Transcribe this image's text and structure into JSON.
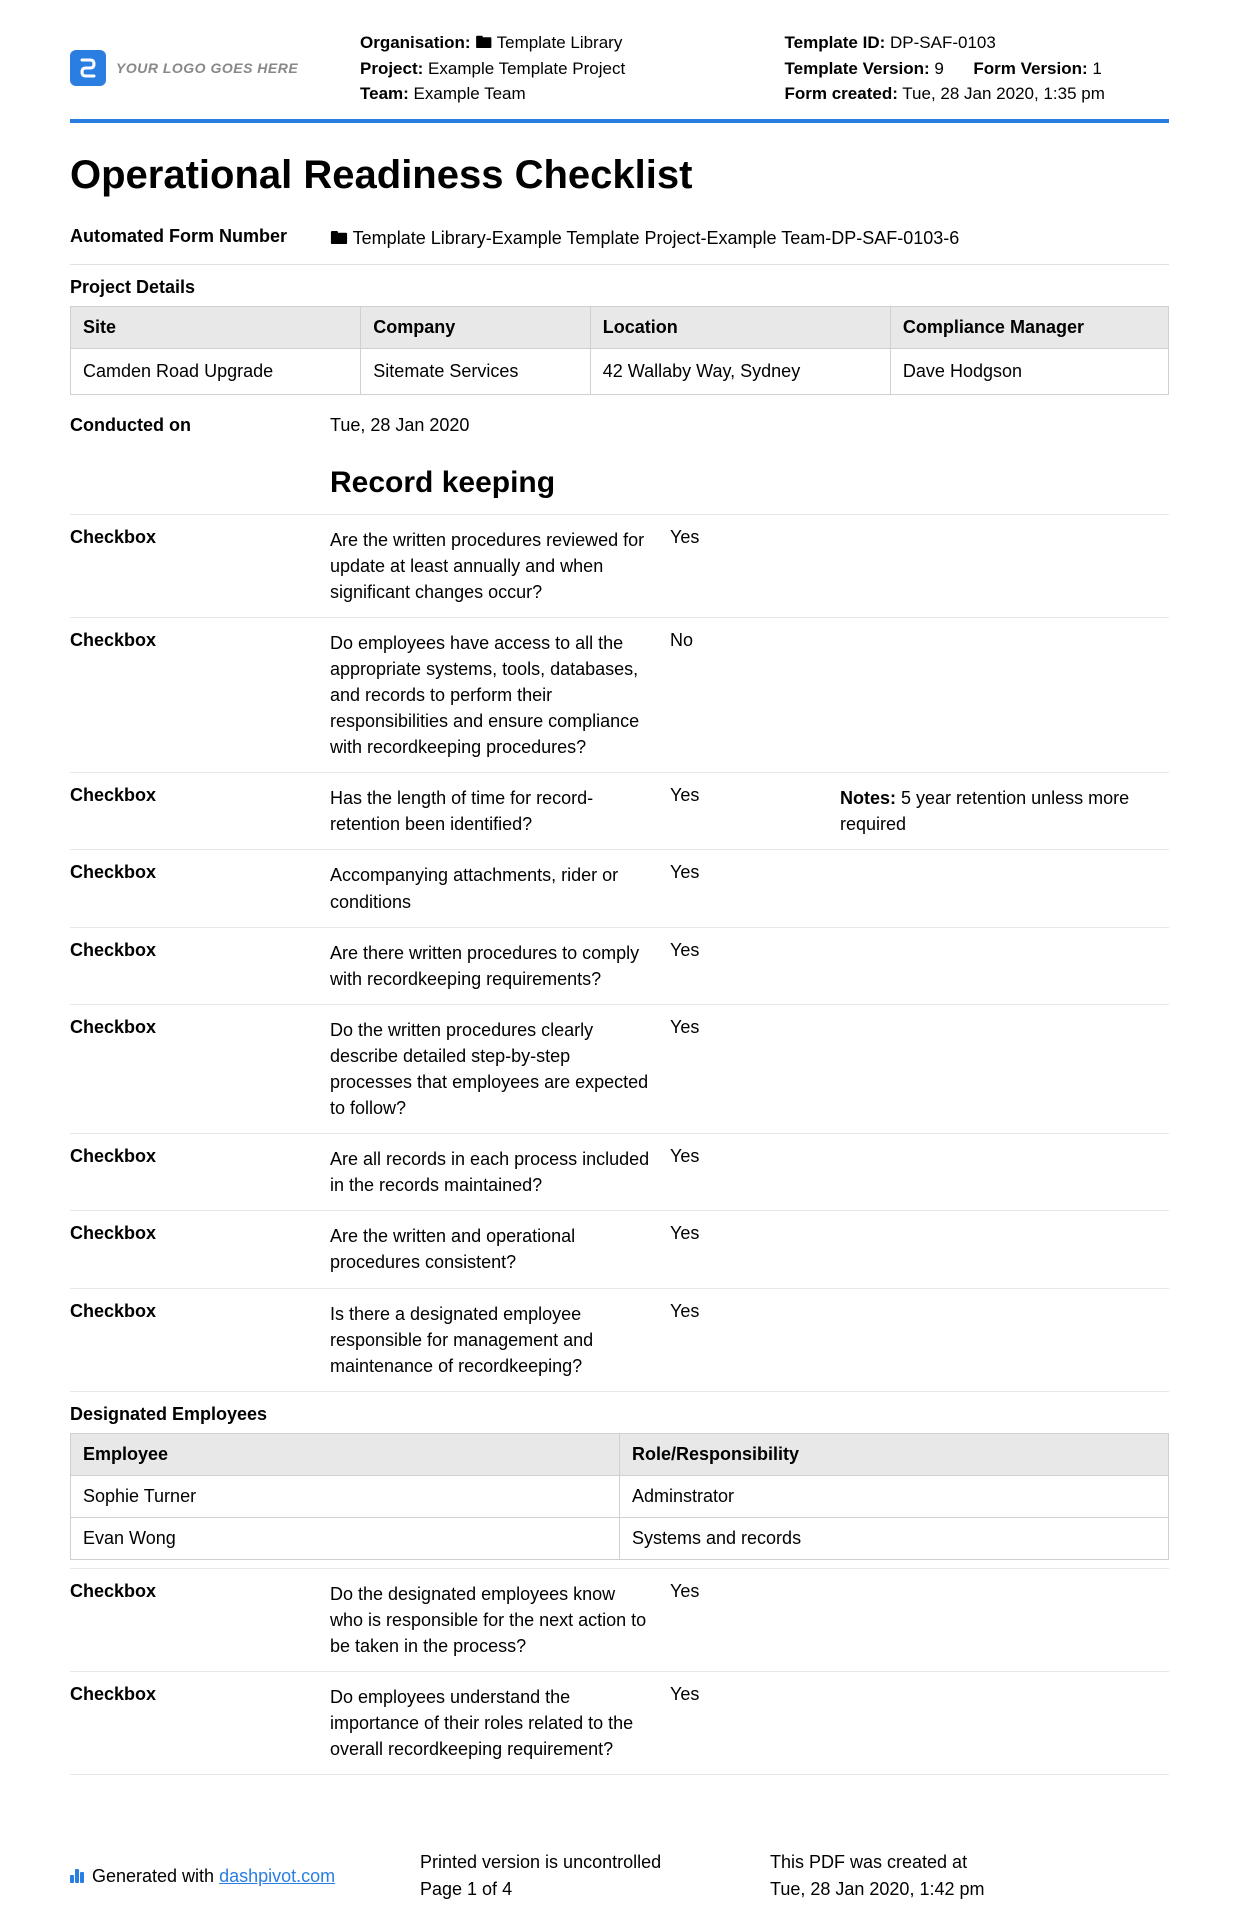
{
  "header": {
    "logo_text": "YOUR LOGO GOES HERE",
    "col1": {
      "organisation_label": "Organisation:",
      "organisation_value": "🖿 Template Library",
      "project_label": "Project:",
      "project_value": "Example Template Project",
      "team_label": "Team:",
      "team_value": "Example Team"
    },
    "col2": {
      "template_id_label": "Template ID:",
      "template_id_value": "DP-SAF-0103",
      "template_version_label": "Template Version:",
      "template_version_value": "9",
      "form_version_label": "Form Version:",
      "form_version_value": "1",
      "form_created_label": "Form created:",
      "form_created_value": "Tue, 28 Jan 2020, 1:35 pm"
    }
  },
  "title": "Operational Readiness Checklist",
  "form_number": {
    "label": "Automated Form Number",
    "value": "🖿 Template Library-Example Template Project-Example Team-DP-SAF-0103-6"
  },
  "project_details": {
    "label": "Project Details",
    "columns": [
      "Site",
      "Company",
      "Location",
      "Compliance Manager"
    ],
    "row": [
      "Camden Road Upgrade",
      "Sitemate Services",
      "42 Wallaby Way, Sydney",
      "Dave Hodgson"
    ]
  },
  "conducted": {
    "label": "Conducted on",
    "value": "Tue, 28 Jan 2020"
  },
  "section_heading": "Record keeping",
  "checkbox_label": "Checkbox",
  "items": [
    {
      "q": "Are the written procedures reviewed for update at least annually and when significant changes occur?",
      "a": "Yes",
      "notes": ""
    },
    {
      "q": "Do employees have access to all the appropriate systems, tools, databases, and records to perform their responsibilities and ensure compliance with recordkeeping procedures?",
      "a": "No",
      "notes": ""
    },
    {
      "q": "Has the length of time for record-retention been identified?",
      "a": "Yes",
      "notes_label": "Notes:",
      "notes": "5 year retention unless more required"
    },
    {
      "q": "Accompanying attachments, rider or conditions",
      "a": "Yes",
      "notes": ""
    },
    {
      "q": "Are there written procedures to comply with recordkeeping requirements?",
      "a": "Yes",
      "notes": ""
    },
    {
      "q": "Do the written procedures clearly describe detailed step-by-step processes that employees are expected to follow?",
      "a": "Yes",
      "notes": ""
    },
    {
      "q": "Are all records in each process included in the records maintained?",
      "a": "Yes",
      "notes": ""
    },
    {
      "q": "Are the written and operational procedures consistent?",
      "a": "Yes",
      "notes": ""
    },
    {
      "q": "Is there a designated employee responsible for management and maintenance of recordkeeping?",
      "a": "Yes",
      "notes": ""
    }
  ],
  "employees": {
    "label": "Designated Employees",
    "columns": [
      "Employee",
      "Role/Responsibility"
    ],
    "rows": [
      [
        "Sophie Turner",
        "Adminstrator"
      ],
      [
        "Evan Wong",
        "Systems and records"
      ]
    ]
  },
  "items2": [
    {
      "q": "Do the designated employees know who is responsible for the next action to be taken in the process?",
      "a": "Yes",
      "notes": ""
    },
    {
      "q": "Do employees understand the importance of their roles related to the overall recordkeeping requirement?",
      "a": "Yes",
      "notes": ""
    }
  ],
  "footer": {
    "generated_text": "Generated with ",
    "link_text": "dashpivot.com",
    "uncontrolled": "Printed version is uncontrolled",
    "page": "Page 1 of 4",
    "created_label": "This PDF was created at",
    "created_value": "Tue, 28 Jan 2020, 1:42 pm"
  }
}
